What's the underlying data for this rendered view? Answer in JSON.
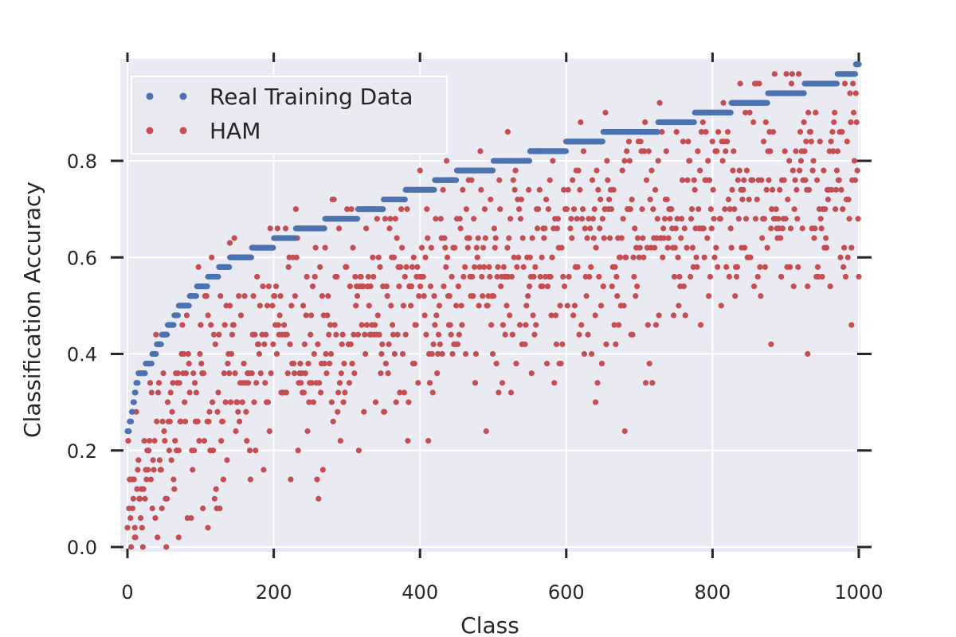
{
  "chart_data": {
    "type": "scatter",
    "title": "",
    "xlabel": "Class",
    "ylabel": "Classification Accuracy",
    "xlim": [
      0,
      1000
    ],
    "ylim": [
      0,
      1.0
    ],
    "xticks": [
      "0",
      "200",
      "400",
      "600",
      "800",
      "1000"
    ],
    "xtick_values": [
      0,
      200,
      400,
      600,
      800,
      1000
    ],
    "yticks": [
      "0.0",
      "0.2",
      "0.4",
      "0.6",
      "0.8"
    ],
    "ytick_values": [
      0.0,
      0.2,
      0.4,
      0.6,
      0.8
    ],
    "grid": true,
    "legend_position": "top-left",
    "background_color": "#eaeaf2",
    "series": [
      {
        "name": "Real Training Data",
        "color": "#4c72b0",
        "curve_points": [
          [
            0,
            0.24
          ],
          [
            5,
            0.26
          ],
          [
            10,
            0.32
          ],
          [
            15,
            0.35
          ],
          [
            20,
            0.36
          ],
          [
            30,
            0.38
          ],
          [
            40,
            0.41
          ],
          [
            50,
            0.44
          ],
          [
            60,
            0.46
          ],
          [
            70,
            0.49
          ],
          [
            80,
            0.5
          ],
          [
            90,
            0.52
          ],
          [
            100,
            0.54
          ],
          [
            110,
            0.55
          ],
          [
            120,
            0.56
          ],
          [
            130,
            0.58
          ],
          [
            150,
            0.6
          ],
          [
            170,
            0.61
          ],
          [
            180,
            0.62
          ],
          [
            200,
            0.63
          ],
          [
            210,
            0.64
          ],
          [
            230,
            0.65
          ],
          [
            250,
            0.66
          ],
          [
            270,
            0.67
          ],
          [
            300,
            0.68
          ],
          [
            330,
            0.7
          ],
          [
            350,
            0.71
          ],
          [
            380,
            0.73
          ],
          [
            400,
            0.74
          ],
          [
            420,
            0.75
          ],
          [
            450,
            0.77
          ],
          [
            500,
            0.79
          ],
          [
            550,
            0.81
          ],
          [
            600,
            0.83
          ],
          [
            650,
            0.85
          ],
          [
            700,
            0.86
          ],
          [
            750,
            0.88
          ],
          [
            800,
            0.9
          ],
          [
            850,
            0.92
          ],
          [
            900,
            0.94
          ],
          [
            950,
            0.96
          ],
          [
            990,
            0.98
          ],
          [
            1000,
            1.0
          ]
        ],
        "step": 0.02,
        "count": 1000
      },
      {
        "name": "HAM",
        "color": "#c44e52",
        "count": 1000,
        "offset_from_real": 0.22,
        "spread": 0.12,
        "min": 0.0,
        "max": 1.0,
        "step": 0.02,
        "notable_points": [
          [
            70,
            0.02
          ],
          [
            110,
            0.04
          ],
          [
            10,
            0.04
          ],
          [
            640,
            0.3
          ],
          [
            680,
            0.24
          ],
          [
            930,
            0.4
          ],
          [
            990,
            0.46
          ],
          [
            880,
            0.42
          ],
          [
            140,
            0.63
          ],
          [
            400,
            0.78
          ],
          [
            520,
            0.86
          ]
        ]
      }
    ]
  }
}
